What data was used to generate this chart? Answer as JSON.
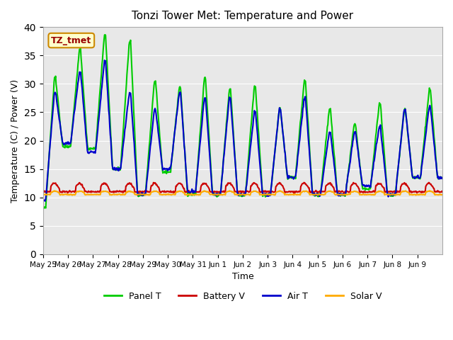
{
  "title": "Tonzi Tower Met: Temperature and Power",
  "xlabel": "Time",
  "ylabel": "Temperature (C) / Power (V)",
  "ylim": [
    0,
    40
  ],
  "yticks": [
    0,
    5,
    10,
    15,
    20,
    25,
    30,
    35,
    40
  ],
  "legend_label": "TZ_tmet",
  "bg_color": "#e8e8e8",
  "fig_color": "#ffffff",
  "series": {
    "panel_t": {
      "label": "Panel T",
      "color": "#00cc00",
      "lw": 1.5
    },
    "battery_v": {
      "label": "Battery V",
      "color": "#cc0000",
      "lw": 1.5
    },
    "air_t": {
      "label": "Air T",
      "color": "#0000cc",
      "lw": 1.5
    },
    "solar_v": {
      "label": "Solar V",
      "color": "#ffaa00",
      "lw": 1.5
    }
  },
  "x_day_labels": [
    "May 25",
    "May 26",
    "May 27",
    "May 28",
    "May 29",
    "May 30",
    "May 31",
    "Jun 1",
    "Jun 2",
    "Jun 3",
    "Jun 4",
    "Jun 5",
    "Jun 6",
    "Jun 7",
    "Jun 8",
    "Jun 9"
  ],
  "num_days": 16,
  "annotation_color": "#990000",
  "annotation_bg": "#ffffcc",
  "annotation_edge": "#cc8800"
}
